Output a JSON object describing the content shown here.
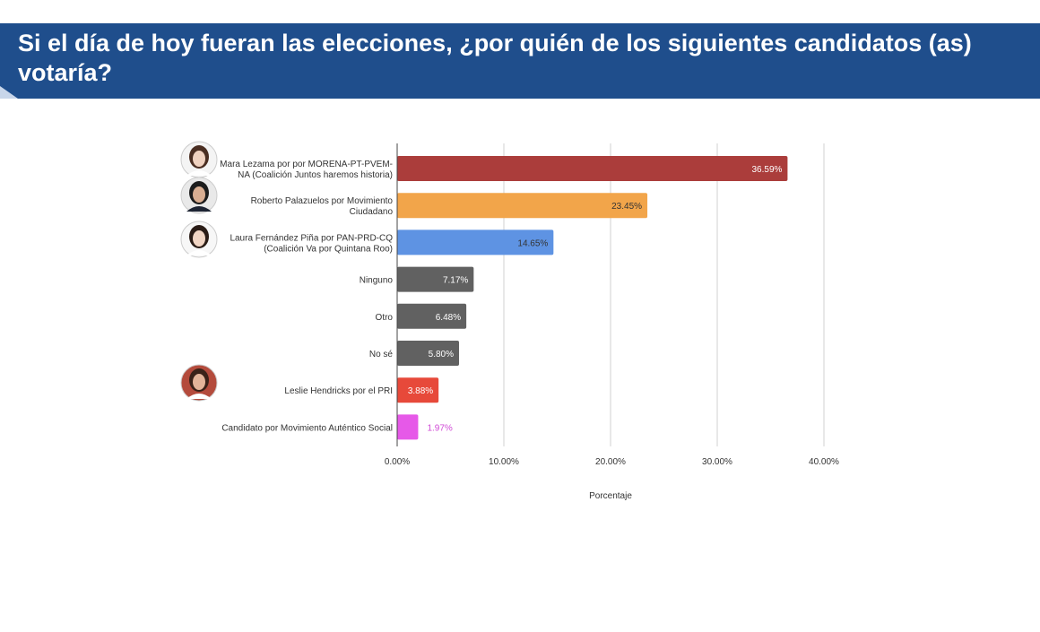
{
  "header": {
    "title": "Si el día de hoy fueran las elecciones, ¿por quién de los siguientes candidatos (as) votaría?"
  },
  "chart_data": {
    "type": "bar",
    "orientation": "horizontal",
    "categories": [
      "Mara Lezama por por MORENA-PT-PVEM-NA (Coalición Juntos haremos historia)",
      "Roberto Palazuelos por Movimiento Ciudadano",
      "Laura Fernández Piña por PAN-PRD-CQ (Coalición Va por Quintana Roo)",
      "Ninguno",
      "Otro",
      "No sé",
      "Leslie Hendricks por el PRI",
      "Candidato por Movimiento Auténtico Social"
    ],
    "category_lines": [
      [
        "Mara Lezama por por MORENA-PT-PVEM-",
        "NA (Coalición Juntos haremos historia)"
      ],
      [
        "Roberto Palazuelos por Movimiento",
        "Ciudadano"
      ],
      [
        "Laura Fernández Piña por PAN-PRD-CQ",
        "(Coalición Va por Quintana Roo)"
      ],
      [
        "Ninguno"
      ],
      [
        "Otro"
      ],
      [
        "No sé"
      ],
      [
        "Leslie Hendricks por el PRI"
      ],
      [
        "Candidato por Movimiento Auténtico Social"
      ]
    ],
    "values": [
      36.59,
      23.45,
      14.65,
      7.17,
      6.48,
      5.8,
      3.88,
      1.97
    ],
    "value_labels": [
      "36.59%",
      "23.45%",
      "14.65%",
      "7.17%",
      "6.48%",
      "5.80%",
      "3.88%",
      "1.97%"
    ],
    "colors": [
      "#ab3d3b",
      "#f2a54a",
      "#5e93e3",
      "#616161",
      "#616161",
      "#616161",
      "#e7493a",
      "#e659e8"
    ],
    "label_colors": [
      "#ffffff",
      "#333333",
      "#333333",
      "#ffffff",
      "#ffffff",
      "#ffffff",
      "#ffffff",
      "#d04ad6"
    ],
    "label_inside": [
      true,
      true,
      true,
      true,
      true,
      true,
      true,
      false
    ],
    "avatars": [
      "woman-portrait-icon",
      "man-portrait-icon",
      "woman-portrait-icon",
      null,
      null,
      null,
      null,
      "woman-portrait-icon"
    ],
    "avatar_rows": [
      0,
      0.85,
      2,
      6
    ],
    "xlim": [
      0,
      40
    ],
    "xticks": [
      0,
      10,
      20,
      30,
      40
    ],
    "xtick_labels": [
      "0.00%",
      "10.00%",
      "20.00%",
      "30.00%",
      "40.00%"
    ],
    "xlabel": "Porcentaje",
    "grid": true
  }
}
